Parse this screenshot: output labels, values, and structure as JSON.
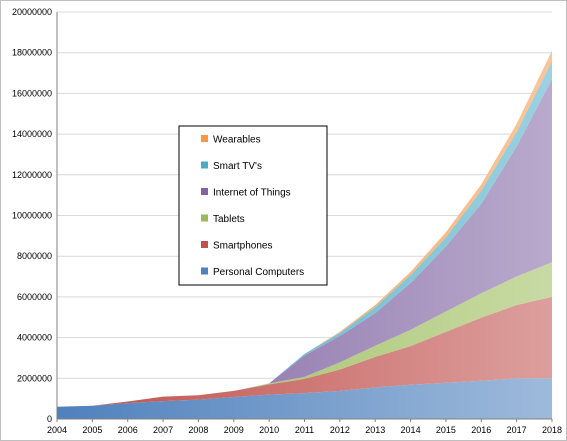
{
  "chart_data": {
    "type": "area",
    "stacked": true,
    "title": "",
    "xlabel": "",
    "ylabel": "",
    "x": [
      2004,
      2005,
      2006,
      2007,
      2008,
      2009,
      2010,
      2011,
      2012,
      2013,
      2014,
      2015,
      2016,
      2017,
      2018
    ],
    "ylim": [
      0,
      20000000
    ],
    "yticks": [
      0,
      2000000,
      4000000,
      6000000,
      8000000,
      10000000,
      12000000,
      14000000,
      16000000,
      18000000,
      20000000
    ],
    "grid": "horizontal",
    "legend_position": "center-left",
    "series": [
      {
        "name": "Personal Computers",
        "color": "#4f81bd",
        "values": [
          600000,
          650000,
          780000,
          880000,
          950000,
          1080000,
          1200000,
          1270000,
          1380000,
          1550000,
          1680000,
          1780000,
          1880000,
          2000000,
          2000000
        ]
      },
      {
        "name": "Smartphones",
        "color": "#c0504d",
        "values": [
          0,
          0,
          80000,
          220000,
          220000,
          300000,
          500000,
          700000,
          1050000,
          1500000,
          1900000,
          2500000,
          3100000,
          3600000,
          4000000
        ]
      },
      {
        "name": "Tablets",
        "color": "#9bbb59",
        "values": [
          0,
          0,
          0,
          0,
          0,
          0,
          50000,
          100000,
          350000,
          550000,
          800000,
          1000000,
          1200000,
          1400000,
          1700000
        ]
      },
      {
        "name": "Internet of Things",
        "color": "#8064a2",
        "values": [
          0,
          0,
          0,
          0,
          0,
          0,
          0,
          1050000,
          1300000,
          1600000,
          2300000,
          3200000,
          4400000,
          6400000,
          9000000
        ]
      },
      {
        "name": "Smart TV's",
        "color": "#4bacc6",
        "values": [
          0,
          0,
          0,
          0,
          0,
          0,
          0,
          80000,
          150000,
          300000,
          400000,
          450000,
          650000,
          700000,
          900000
        ]
      },
      {
        "name": "Wearables",
        "color": "#f79646",
        "values": [
          0,
          0,
          0,
          0,
          0,
          0,
          0,
          0,
          50000,
          100000,
          150000,
          250000,
          300000,
          400000,
          500000
        ]
      }
    ],
    "legend_order": [
      "Wearables",
      "Smart TV's",
      "Internet of Things",
      "Tablets",
      "Smartphones",
      "Personal Computers"
    ]
  }
}
